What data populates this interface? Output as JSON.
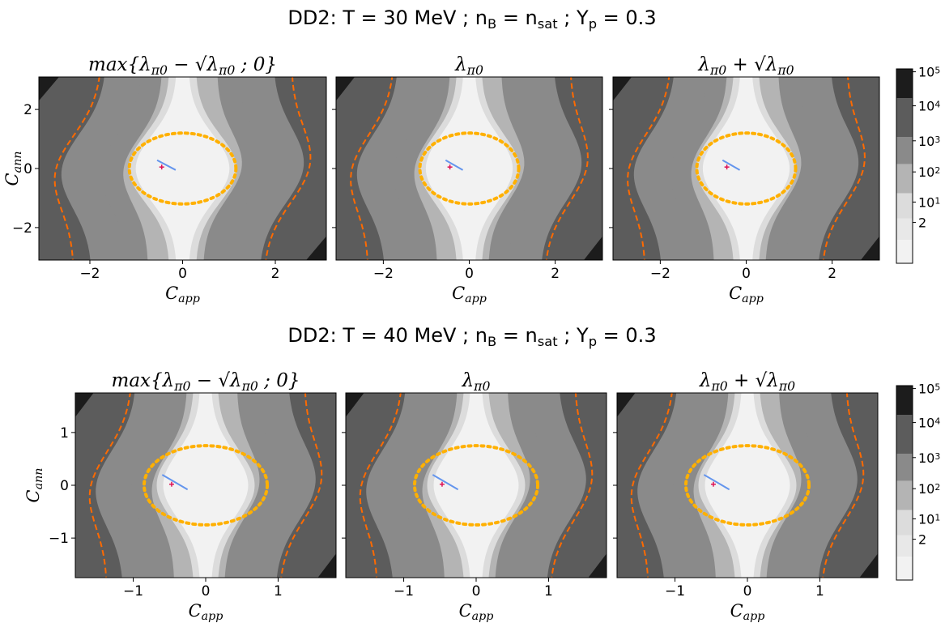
{
  "colors": {
    "levels": [
      "#f2f2f2",
      "#dcdcdc",
      "#b4b4b4",
      "#8a8a8a",
      "#5c5c5c",
      "#1c1c1c"
    ],
    "dashed_curve": "#ff6a00",
    "ellipse": "#ffb000",
    "segment": "#6495ed",
    "marker": "#dd1155"
  },
  "chart_data": [
    {
      "type": "heatmap",
      "title": "DD2: T = 30 MeV ; n_B = n_sat ; Y_p = 0.3",
      "xlabel": "C_app",
      "ylabel": "C_ann",
      "xlim": [
        -3.1,
        3.1
      ],
      "ylim": [
        -3.1,
        3.1
      ],
      "xticks": [
        -2,
        0,
        2
      ],
      "yticks": [
        -2,
        0,
        2
      ],
      "colorbar_labels": [
        "10^5",
        "10^4",
        "10^3",
        "10^2",
        "10^1",
        "2"
      ],
      "panels": [
        "max{λ_π0 − √λ_π0 ; 0}",
        "λ_π0",
        "λ_π0 + √λ_π0"
      ],
      "ellipse": {
        "cx": 0,
        "cy": 0,
        "rx": 1.15,
        "ry": 1.2
      },
      "segment": [
        [
          -0.55,
          0.28
        ],
        [
          -0.15,
          -0.05
        ]
      ],
      "marker": [
        -0.45,
        0.05
      ]
    },
    {
      "type": "heatmap",
      "title": "DD2: T = 40 MeV ; n_B = n_sat ; Y_p = 0.3",
      "xlabel": "C_app",
      "ylabel": "C_ann",
      "xlim": [
        -1.8,
        1.8
      ],
      "ylim": [
        -1.75,
        1.75
      ],
      "xticks": [
        -1,
        0,
        1
      ],
      "yticks": [
        -1,
        0,
        1
      ],
      "colorbar_labels": [
        "10^5",
        "10^4",
        "10^3",
        "10^2",
        "10^1",
        "2"
      ],
      "panels": [
        "max{λ_π0 − √λ_π0 ; 0}",
        "λ_π0",
        "λ_π0 + √λ_π0"
      ],
      "ellipse": {
        "cx": 0,
        "cy": 0,
        "rx": 0.85,
        "ry": 0.75
      },
      "segment": [
        [
          -0.6,
          0.2
        ],
        [
          -0.25,
          -0.08
        ]
      ],
      "marker": [
        -0.47,
        0.02
      ]
    }
  ]
}
